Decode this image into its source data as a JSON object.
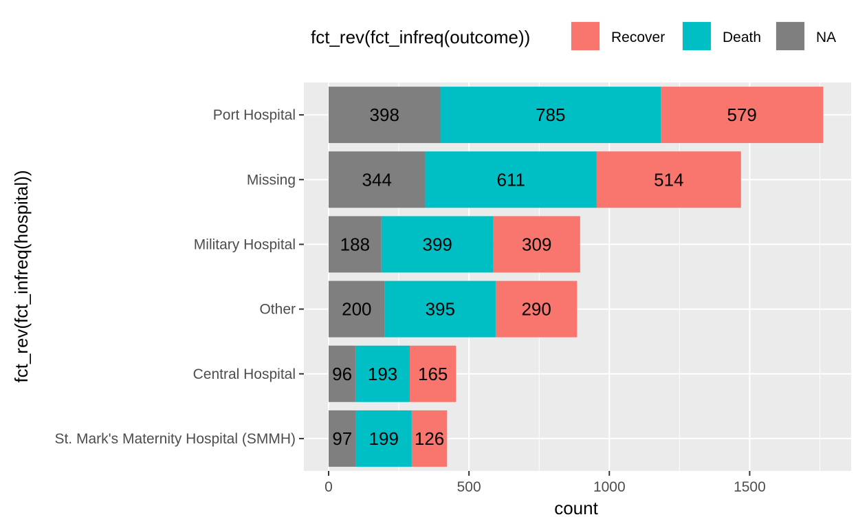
{
  "chart_data": {
    "type": "bar",
    "orientation": "horizontal",
    "stacked": true,
    "categories": [
      "Port Hospital",
      "Missing",
      "Military Hospital",
      "Other",
      "Central Hospital",
      "St. Mark's Maternity Hospital (SMMH)"
    ],
    "series": [
      {
        "name": "NA",
        "color": "#7f7f7f",
        "values": [
          398,
          344,
          188,
          200,
          96,
          97
        ]
      },
      {
        "name": "Death",
        "color": "#00bfc4",
        "values": [
          785,
          611,
          399,
          395,
          193,
          199
        ]
      },
      {
        "name": "Recover",
        "color": "#f8766d",
        "values": [
          579,
          514,
          309,
          290,
          165,
          126
        ]
      }
    ],
    "xlabel": "count",
    "ylabel": "fct_rev(fct_infreq(hospital))",
    "xlim": [
      -90,
      1850
    ],
    "x_ticks": [
      0,
      500,
      1000,
      1500
    ],
    "grid": true,
    "legend": {
      "title": "fct_rev(fct_infreq(outcome))",
      "position": "top",
      "entries": [
        {
          "label": "Recover",
          "color": "#f8766d"
        },
        {
          "label": "Death",
          "color": "#00bfc4"
        },
        {
          "label": "NA",
          "color": "#7f7f7f"
        }
      ]
    },
    "panel_background": "#ebebeb",
    "gridline_color": "#ffffff"
  }
}
